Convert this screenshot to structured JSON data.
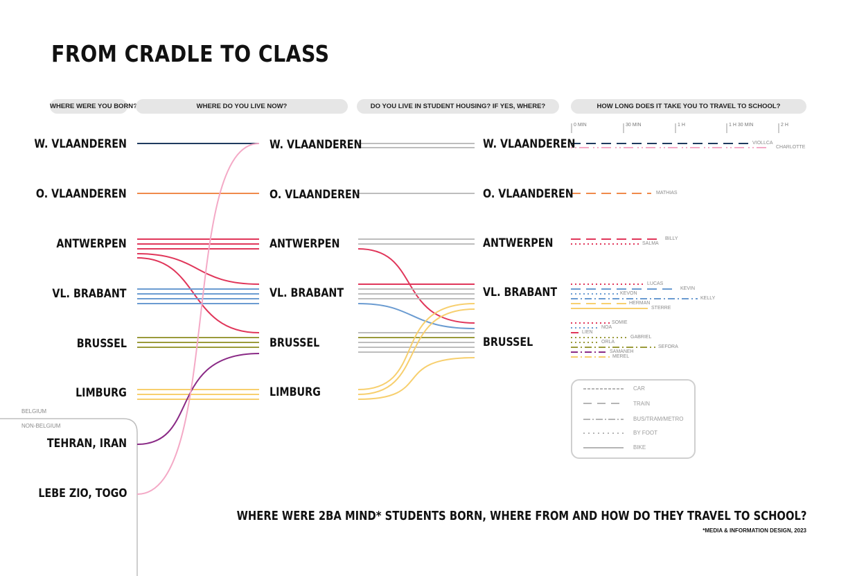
{
  "title": "FROM CRADLE TO CLASS",
  "headers": {
    "born": "WHERE WERE YOU BORN?",
    "live": "WHERE DO YOU LIVE NOW?",
    "housing": "DO YOU LIVE IN STUDENT HOUSING? IF YES, WHERE?",
    "travel": "HOW LONG DOES IT TAKE YOU TO TRAVEL TO SCHOOL?"
  },
  "born_labels": [
    "W. VLAANDEREN",
    "O. VLAANDEREN",
    "ANTWERPEN",
    "VL. BRABANT",
    "BRUSSEL",
    "LIMBURG",
    "TEHRAN, IRAN",
    "LEBE ZIO, TOGO"
  ],
  "live_labels": [
    "W. VLAANDEREN",
    "O. VLAANDEREN",
    "ANTWERPEN",
    "VL. BRABANT",
    "BRUSSEL",
    "LIMBURG"
  ],
  "housing_labels": [
    "W. VLAANDEREN",
    "O. VLAANDEREN",
    "ANTWERPEN",
    "VL. BRABANT",
    "BRUSSEL"
  ],
  "regions": {
    "belgium": "BELGIUM",
    "non_belgium": "NON-BELGIUM"
  },
  "time_ticks": [
    "0 MIN",
    "30 MIN",
    "1 H",
    "1 H 30 MIN",
    "2 H"
  ],
  "students": [
    "VIOLLCA",
    "CHARLOTTE",
    "MATHIAS",
    "BILLY",
    "SALMA",
    "LUCAS",
    "KEVIN",
    "KEVON",
    "KELLY",
    "HERMAN",
    "STERRE",
    "SOMIE",
    "NOA",
    "LIEN",
    "GABRIEL",
    "ORLA",
    "SEFORA",
    "SAMANEH",
    "MEREL"
  ],
  "legend": {
    "car": "CAR",
    "train": "TRAIN",
    "bus": "BUS/TRAM/METRO",
    "foot": "BY FOOT",
    "bike": "BIKE"
  },
  "colors": {
    "w_vlaanderen": "#1f3a5f",
    "o_vlaanderen": "#f08a4b",
    "antwerpen": "#e0365a",
    "vl_brabant": "#6a9bd1",
    "brussel": "#9a9a3a",
    "limburg": "#f7cf6e",
    "tehran": "#8a2a86",
    "togo": "#f4a9c6",
    "no_housing": "#bdbdbd"
  },
  "subtitle": "WHERE WERE 2BA MIND* STUDENTS BORN, WHERE FROM AND HOW DO THEY TRAVEL TO SCHOOL?",
  "credit": "*MEDIA & INFORMATION DESIGN, 2023"
}
